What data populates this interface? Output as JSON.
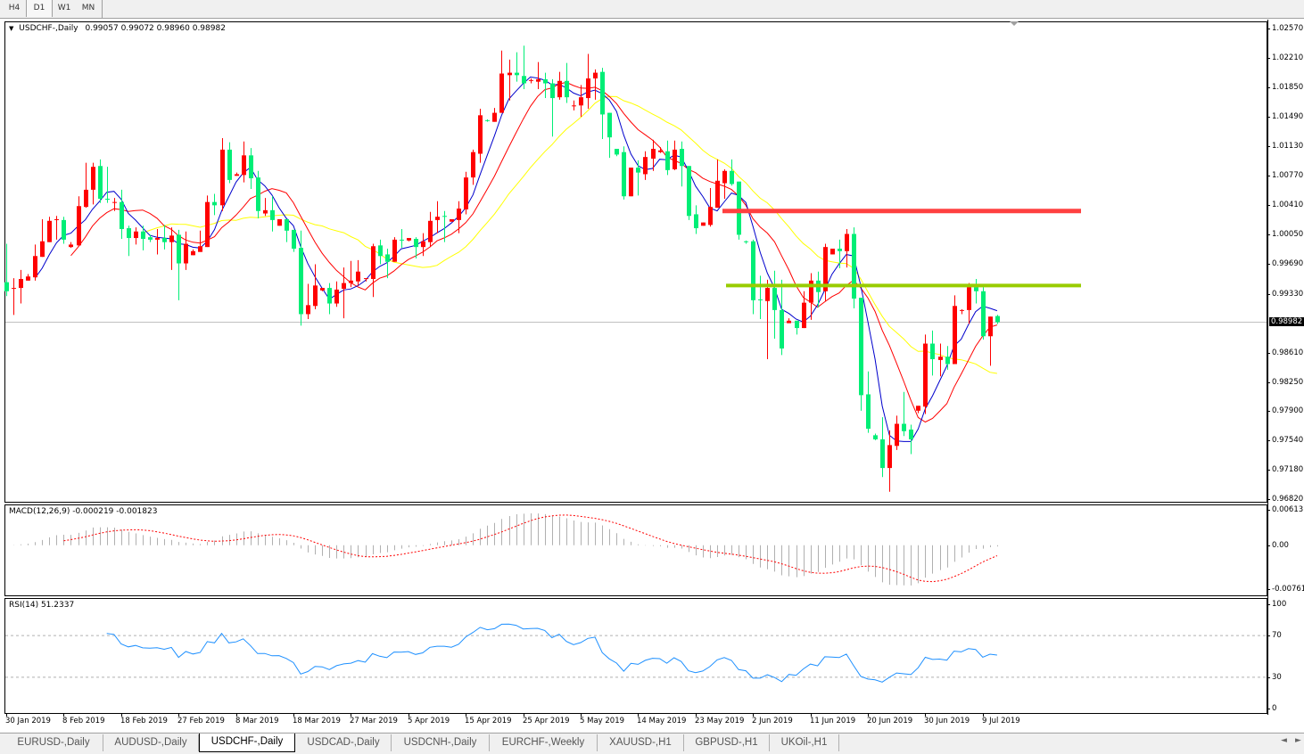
{
  "toolbar": {
    "timeframes": [
      {
        "label": "H4",
        "active": false
      },
      {
        "label": "D1",
        "active": true
      },
      {
        "label": "W1",
        "active": false
      },
      {
        "label": "MN",
        "active": false
      }
    ]
  },
  "chart": {
    "symbol_label": "USDCHF-,Daily",
    "ohlc_readout": "0.99057 0.99072 0.98960 0.98982",
    "collapse_icon": "triangle-down-icon"
  },
  "chart_data": {
    "type": "candlestick",
    "symbol": "USDCHF-,Daily",
    "y_range": [
      0.9682,
      1.0257
    ],
    "price_ticks": [
      "1.02570",
      "1.02210",
      "1.01850",
      "1.01490",
      "1.01130",
      "1.00770",
      "1.00410",
      "1.00050",
      "0.99690",
      "0.99330",
      "0.98610",
      "0.98250",
      "0.97900",
      "0.97540",
      "0.97180",
      "0.96820"
    ],
    "current_price": "0.98982",
    "date_ticks": [
      "30 Jan 2019",
      "8 Feb 2019",
      "18 Feb 2019",
      "27 Feb 2019",
      "8 Mar 2019",
      "18 Mar 2019",
      "27 Mar 2019",
      "5 Apr 2019",
      "15 Apr 2019",
      "25 Apr 2019",
      "5 May 2019",
      "14 May 2019",
      "23 May 2019",
      "2 Jun 2019",
      "11 Jun 2019",
      "20 Jun 2019",
      "30 Jun 2019",
      "9 Jul 2019"
    ],
    "colors": {
      "bull": "#ff0000",
      "bear": "#00ee76",
      "ma_fast": "#0000cc",
      "ma_mid": "#ff0000",
      "ma_slow": "#ffff00",
      "grid_price_line": "#c0c0c0"
    },
    "levels": [
      {
        "price": 1.0034,
        "color": "#ff4040"
      },
      {
        "price": 0.9943,
        "color": "#99cc00"
      }
    ],
    "ohlc_columns": [
      "open",
      "high",
      "low",
      "close"
    ],
    "ohlc": [
      [
        0.9947,
        0.9994,
        0.993,
        0.9936
      ],
      [
        0.9939,
        0.9952,
        0.9907,
        0.994
      ],
      [
        0.994,
        0.9962,
        0.9921,
        0.9951
      ],
      [
        0.9949,
        0.9957,
        0.9949,
        0.9954
      ],
      [
        0.9953,
        0.9993,
        0.9949,
        0.9979
      ],
      [
        0.9978,
        1.0024,
        0.9978,
        0.9997
      ],
      [
        0.9996,
        1.0027,
        0.9996,
        1.0022
      ],
      [
        1.0023,
        1.0028,
        0.9999,
        1.0024
      ],
      [
        1.0023,
        1.0027,
        0.9994,
        0.9999
      ],
      [
        0.999,
        0.9996,
        0.9989,
        0.9993
      ],
      [
        0.9992,
        1.0052,
        0.9991,
        1.004
      ],
      [
        1.0039,
        1.0093,
        1.0038,
        1.006
      ],
      [
        1.006,
        1.0093,
        1.0042,
        1.0088
      ],
      [
        1.0089,
        1.0097,
        1.0044,
        1.0049
      ],
      [
        1.0049,
        1.0088,
        1.0044,
        1.0048
      ],
      [
        1.0045,
        1.005,
        1.0034,
        1.0045
      ],
      [
        1.0045,
        1.006,
        1.0,
        1.0012
      ],
      [
        1.0013,
        1.0016,
        0.9979,
        1.0001
      ],
      [
        1.0001,
        1.0014,
        0.9993,
        1.0009
      ],
      [
        1.0009,
        1.0016,
        0.9986,
        1.0
      ],
      [
        1.0002,
        1.0005,
        0.9996,
        0.9999
      ],
      [
        0.9999,
        1.0012,
        0.9981,
        1.0001
      ],
      [
        1.0001,
        1.0017,
        0.9987,
        0.9996
      ],
      [
        0.9996,
        1.0014,
        0.9962,
        1.0004
      ],
      [
        1.0005,
        1.0011,
        0.9925,
        0.997
      ],
      [
        0.997,
        1.0009,
        0.9962,
        0.9994
      ],
      [
        0.998,
        0.9987,
        0.998,
        0.9985
      ],
      [
        0.9984,
        1.001,
        0.9984,
        0.9991
      ],
      [
        0.999,
        1.0053,
        0.999,
        1.0045
      ],
      [
        1.0045,
        1.0055,
        1.0029,
        1.0041
      ],
      [
        1.0041,
        1.0123,
        1.0034,
        1.0109
      ],
      [
        1.0109,
        1.0118,
        1.0068,
        1.0072
      ],
      [
        1.0077,
        1.0081,
        1.0077,
        1.0079
      ],
      [
        1.0078,
        1.0119,
        1.0069,
        1.0102
      ],
      [
        1.0102,
        1.0111,
        1.0061,
        1.0074
      ],
      [
        1.0075,
        1.0083,
        1.0025,
        1.0034
      ],
      [
        1.0031,
        1.005,
        1.0028,
        1.0035
      ],
      [
        1.0035,
        1.0052,
        1.0009,
        1.0023
      ],
      [
        1.0016,
        1.0024,
        1.0016,
        1.0024
      ],
      [
        1.0024,
        1.0024,
        0.9996,
        1.001
      ],
      [
        1.0011,
        1.0011,
        0.9984,
        0.9988
      ],
      [
        0.9989,
        1.001,
        0.9894,
        0.9908
      ],
      [
        0.9908,
        0.9945,
        0.9902,
        0.9919
      ],
      [
        0.9918,
        0.9969,
        0.9914,
        0.9943
      ],
      [
        0.9937,
        0.994,
        0.9936,
        0.994
      ],
      [
        0.994,
        0.9946,
        0.9908,
        0.9921
      ],
      [
        0.9921,
        0.9948,
        0.9917,
        0.9938
      ],
      [
        0.9939,
        0.9965,
        0.9903,
        0.9946
      ],
      [
        0.9946,
        0.9973,
        0.9941,
        0.9949
      ],
      [
        0.9948,
        0.9974,
        0.9943,
        0.996
      ],
      [
        0.9951,
        0.9952,
        0.9948,
        0.9952
      ],
      [
        0.9951,
        0.9994,
        0.9929,
        0.9991
      ],
      [
        0.9992,
        0.9999,
        0.9969,
        0.9979
      ],
      [
        0.9981,
        0.9988,
        0.9952,
        0.9972
      ],
      [
        0.9972,
        1.0002,
        0.9972,
        0.9999
      ],
      [
        0.9999,
        1.0012,
        0.9989,
        0.9998
      ],
      [
        0.9998,
        1.0001,
        0.9997,
        1.0001
      ],
      [
        1.0,
        1.0002,
        0.9976,
        0.999
      ],
      [
        0.999,
        1.0007,
        0.9979,
        0.9997
      ],
      [
        0.9996,
        1.0033,
        0.999,
        1.0022
      ],
      [
        1.0023,
        1.0046,
        1.0007,
        1.0027
      ],
      [
        1.0028,
        1.0034,
        0.9996,
        1.0027
      ],
      [
        1.0021,
        1.0024,
        1.0021,
        1.0024
      ],
      [
        1.0023,
        1.0046,
        1.0007,
        1.0037
      ],
      [
        1.0036,
        1.0082,
        1.003,
        1.0075
      ],
      [
        1.0075,
        1.0109,
        1.0066,
        1.0106
      ],
      [
        1.0104,
        1.0159,
        1.0093,
        1.0151
      ],
      [
        1.0145,
        1.0146,
        1.0143,
        1.0144
      ],
      [
        1.0143,
        1.016,
        1.0143,
        1.0154
      ],
      [
        1.0154,
        1.023,
        1.0154,
        1.0202
      ],
      [
        1.02,
        1.0219,
        1.0169,
        1.0203
      ],
      [
        1.0203,
        1.0228,
        1.0192,
        1.02
      ],
      [
        1.0199,
        1.0236,
        1.0183,
        1.019
      ],
      [
        1.0193,
        1.0196,
        1.019,
        1.0194
      ],
      [
        1.0192,
        1.0216,
        1.0183,
        1.0195
      ],
      [
        1.0195,
        1.0203,
        1.0172,
        1.019
      ],
      [
        1.019,
        1.0195,
        1.0125,
        1.0172
      ],
      [
        1.0173,
        1.0204,
        1.017,
        1.0193
      ],
      [
        1.0193,
        1.0215,
        1.0166,
        1.0173
      ],
      [
        1.0162,
        1.0169,
        1.0157,
        1.0163
      ],
      [
        1.0163,
        1.0188,
        1.0149,
        1.0173
      ],
      [
        1.0172,
        1.0226,
        1.0159,
        1.0196
      ],
      [
        1.0196,
        1.0207,
        1.017,
        1.0203
      ],
      [
        1.0204,
        1.0209,
        1.0122,
        1.0152
      ],
      [
        1.0154,
        1.0154,
        1.0099,
        1.0124
      ],
      [
        1.011,
        1.011,
        1.0101,
        1.0103
      ],
      [
        1.0106,
        1.0113,
        1.0048,
        1.0052
      ],
      [
        1.0052,
        1.0087,
        1.0052,
        1.0087
      ],
      [
        1.0087,
        1.0096,
        1.0053,
        1.0081
      ],
      [
        1.0079,
        1.0107,
        1.0072,
        1.01
      ],
      [
        1.0098,
        1.0121,
        1.0083,
        1.011
      ],
      [
        1.0106,
        1.0112,
        1.0105,
        1.0108
      ],
      [
        1.0107,
        1.012,
        1.0078,
        1.0084
      ],
      [
        1.0085,
        1.012,
        1.0084,
        1.0109
      ],
      [
        1.011,
        1.0119,
        1.0064,
        1.0089
      ],
      [
        1.0089,
        1.0089,
        1.0023,
        1.0028
      ],
      [
        1.003,
        1.0041,
        1.0006,
        1.0013
      ],
      [
        1.0016,
        1.002,
        1.0016,
        1.002
      ],
      [
        1.0017,
        1.0062,
        1.0015,
        1.0039
      ],
      [
        1.0038,
        1.0097,
        1.0038,
        1.0071
      ],
      [
        1.0068,
        1.0085,
        1.0049,
        1.0083
      ],
      [
        1.0083,
        1.0097,
        1.0065,
        1.0067
      ],
      [
        1.007,
        1.007,
        0.9999,
        1.0005
      ],
      [
        0.9997,
        0.9998,
        0.9994,
        0.9996
      ],
      [
        0.9997,
        0.9999,
        0.9908,
        0.9925
      ],
      [
        0.9926,
        0.9955,
        0.9902,
        0.9925
      ],
      [
        0.9924,
        0.995,
        0.9853,
        0.994
      ],
      [
        0.994,
        0.9961,
        0.9878,
        0.9913
      ],
      [
        0.9913,
        0.995,
        0.9858,
        0.9866
      ],
      [
        0.9897,
        0.9903,
        0.9897,
        0.99
      ],
      [
        0.99,
        0.99,
        0.9883,
        0.9891
      ],
      [
        0.9891,
        0.9936,
        0.9891,
        0.9922
      ],
      [
        0.9922,
        0.9958,
        0.9901,
        0.9949
      ],
      [
        0.9949,
        0.996,
        0.9916,
        0.9935
      ],
      [
        0.9936,
        0.9994,
        0.9924,
        0.999
      ],
      [
        0.9981,
        0.9988,
        0.9981,
        0.9988
      ],
      [
        0.9988,
        0.9999,
        0.9964,
        0.9985
      ],
      [
        0.9985,
        1.0012,
        0.9965,
        1.0006
      ],
      [
        1.0006,
        1.0014,
        0.9915,
        0.9927
      ],
      [
        0.9928,
        0.9928,
        0.979,
        0.9809
      ],
      [
        0.981,
        0.9838,
        0.9763,
        0.9768
      ],
      [
        0.976,
        0.9762,
        0.9754,
        0.9755
      ],
      [
        0.9755,
        0.9782,
        0.9709,
        0.972
      ],
      [
        0.972,
        0.9766,
        0.9691,
        0.9748
      ],
      [
        0.9747,
        0.9784,
        0.9742,
        0.9774
      ],
      [
        0.9774,
        0.9813,
        0.9759,
        0.9765
      ],
      [
        0.9767,
        0.9773,
        0.9737,
        0.9755
      ],
      [
        0.979,
        0.9796,
        0.9787,
        0.9796
      ],
      [
        0.9795,
        0.9883,
        0.9786,
        0.9872
      ],
      [
        0.9872,
        0.9888,
        0.9833,
        0.9853
      ],
      [
        0.9852,
        0.9872,
        0.9832,
        0.9856
      ],
      [
        0.9856,
        0.9869,
        0.984,
        0.9847
      ],
      [
        0.9847,
        0.9931,
        0.9847,
        0.9918
      ],
      [
        0.9912,
        0.9914,
        0.9908,
        0.9913
      ],
      [
        0.9913,
        0.9946,
        0.9896,
        0.9941
      ],
      [
        0.9941,
        0.9951,
        0.9921,
        0.9936
      ],
      [
        0.9936,
        0.9941,
        0.9877,
        0.9881
      ],
      [
        0.9881,
        0.9905,
        0.9845,
        0.9905
      ],
      [
        0.99057,
        0.99072,
        0.9896,
        0.98982
      ]
    ]
  },
  "macd": {
    "label": "MACD(12,26,9) -0.000219 -0.001823",
    "ticks": [
      "0.00613",
      "0.00",
      "-0.00761"
    ],
    "range": [
      -0.00761,
      0.00613
    ],
    "histogram_color": "#b0b0b0",
    "signal_color": "#ff0000"
  },
  "rsi": {
    "label": "RSI(14) 51.2337",
    "ticks": [
      "100",
      "70",
      "30",
      "0"
    ],
    "levels": [
      70,
      30
    ],
    "line_color": "#1e90ff"
  },
  "tabs": [
    {
      "label": "EURUSD-,Daily",
      "active": false
    },
    {
      "label": "AUDUSD-,Daily",
      "active": false
    },
    {
      "label": "USDCHF-,Daily",
      "active": true
    },
    {
      "label": "USDCAD-,Daily",
      "active": false
    },
    {
      "label": "USDCNH-,Daily",
      "active": false
    },
    {
      "label": "EURCHF-,Weekly",
      "active": false
    },
    {
      "label": "XAUUSD-,H1",
      "active": false
    },
    {
      "label": "GBPUSD-,H1",
      "active": false
    },
    {
      "label": "UKOil-,H1",
      "active": false
    }
  ],
  "scroll": {
    "left": "◄",
    "right": "►"
  }
}
